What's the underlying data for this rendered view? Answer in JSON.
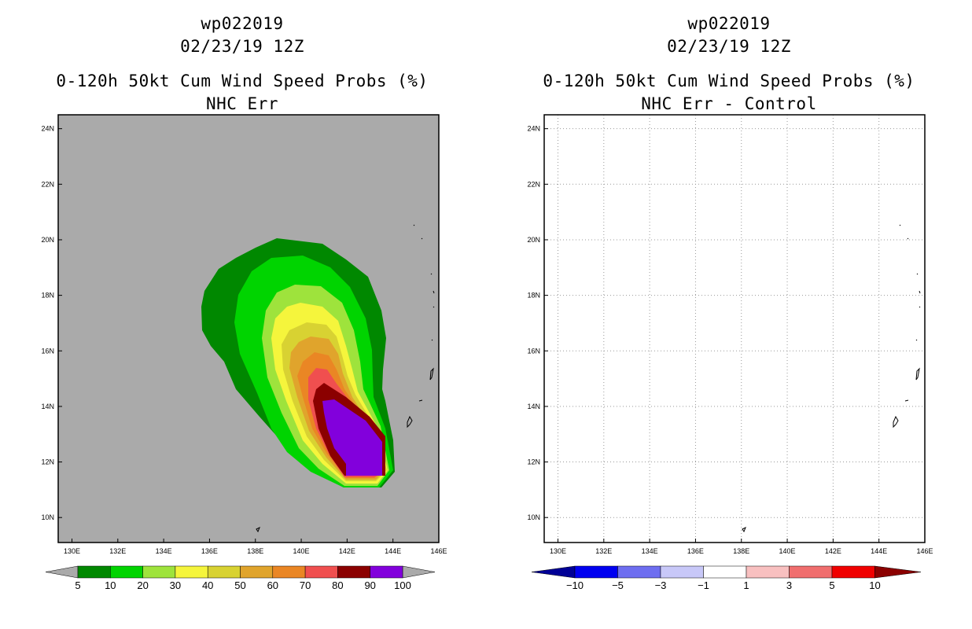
{
  "chart_data": [
    {
      "type": "filled-contour-map",
      "header": {
        "storm": "wp022019",
        "datetime": "02/23/19 12Z"
      },
      "title": "0-120h 50kt Cum Wind Speed Probs (%)",
      "subtitle": "NHC Err",
      "x_axis": {
        "range": [
          129.4,
          146
        ],
        "ticks": [
          "130E",
          "132E",
          "134E",
          "136E",
          "138E",
          "140E",
          "142E",
          "144E",
          "146E"
        ]
      },
      "y_axis": {
        "range": [
          9.1,
          24.5
        ],
        "ticks": [
          "10N",
          "12N",
          "14N",
          "16N",
          "18N",
          "20N",
          "22N",
          "24N"
        ]
      },
      "background_color": "#aaaaaa",
      "levels": [
        5,
        10,
        20,
        30,
        40,
        50,
        60,
        70,
        80,
        90,
        100
      ],
      "colors": [
        "#008800",
        "#00d400",
        "#9ee33c",
        "#f5f53c",
        "#d8d232",
        "#e0a42c",
        "#ea8624",
        "#f04f4f",
        "#8b0000",
        "#8200dc"
      ],
      "colorbar_labels": [
        "5",
        "10",
        "20",
        "30",
        "40",
        "50",
        "60",
        "70",
        "80",
        "90",
        "100"
      ]
    },
    {
      "type": "filled-contour-map",
      "header": {
        "storm": "wp022019",
        "datetime": "02/23/19 12Z"
      },
      "title": "0-120h 50kt Cum Wind Speed Probs (%)",
      "subtitle": "NHC Err - Control",
      "x_axis": {
        "range": [
          129.4,
          146
        ],
        "ticks": [
          "130E",
          "132E",
          "134E",
          "136E",
          "138E",
          "140E",
          "142E",
          "144E",
          "146E"
        ]
      },
      "y_axis": {
        "range": [
          9.1,
          24.5
        ],
        "ticks": [
          "10N",
          "12N",
          "14N",
          "16N",
          "18N",
          "20N",
          "22N",
          "24N"
        ]
      },
      "background_color": "#ffffff",
      "grid": true,
      "levels": [
        -10,
        -5,
        -3,
        -1,
        1,
        3,
        5,
        10
      ],
      "colors": [
        "#000096",
        "#0000f0",
        "#6e6ef0",
        "#c8c8f8",
        "#ffffff",
        "#f8c0c0",
        "#f06e6e",
        "#f00000",
        "#8b0000"
      ],
      "colorbar_labels": [
        "-10",
        "-5",
        "-3",
        "-1",
        "1",
        "3",
        "5",
        "10"
      ]
    }
  ]
}
